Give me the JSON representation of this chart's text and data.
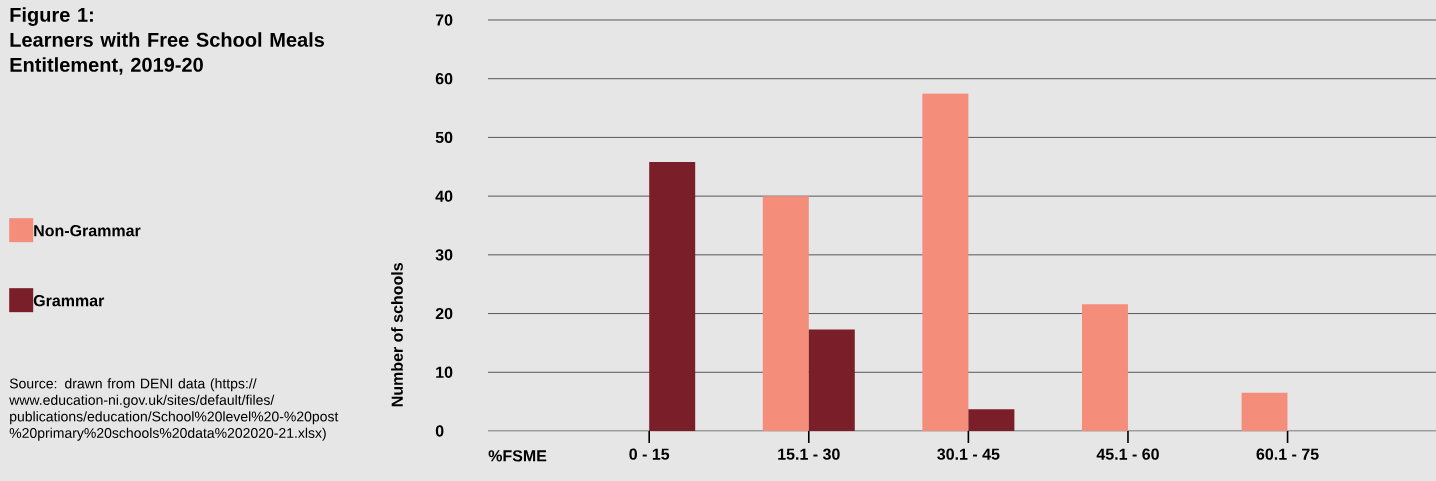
{
  "chart_data": {
    "type": "bar",
    "title": "Figure 1:",
    "subtitle": "Learners with Free School Meals Entitlement, 2019-20",
    "xlabel": "%FSME",
    "ylabel": "Number of schools",
    "categories": [
      "0 - 15",
      "15.1 - 30",
      "30.1 - 45",
      "45.1 - 60",
      "60.1 - 75"
    ],
    "series": [
      {
        "name": "Non-Grammar",
        "color": "#f48e7b",
        "values": [
          0,
          40,
          57.5,
          21.6,
          6.5
        ]
      },
      {
        "name": "Grammar",
        "color": "#7a1f2a",
        "values": [
          45.8,
          17.3,
          3.7,
          0,
          0
        ]
      }
    ],
    "ylim": [
      0,
      70
    ],
    "yticks": [
      0,
      10,
      20,
      30,
      40,
      50,
      60,
      70
    ],
    "grid": "y",
    "legend": "left",
    "annotations": [
      "Source: drawn from DENI data (https://www.education-ni.gov.uk/sites/default/files/publications/education/School%20level%20-%20post%20primary%20schools%20data%202020-21.xlsx)"
    ]
  }
}
